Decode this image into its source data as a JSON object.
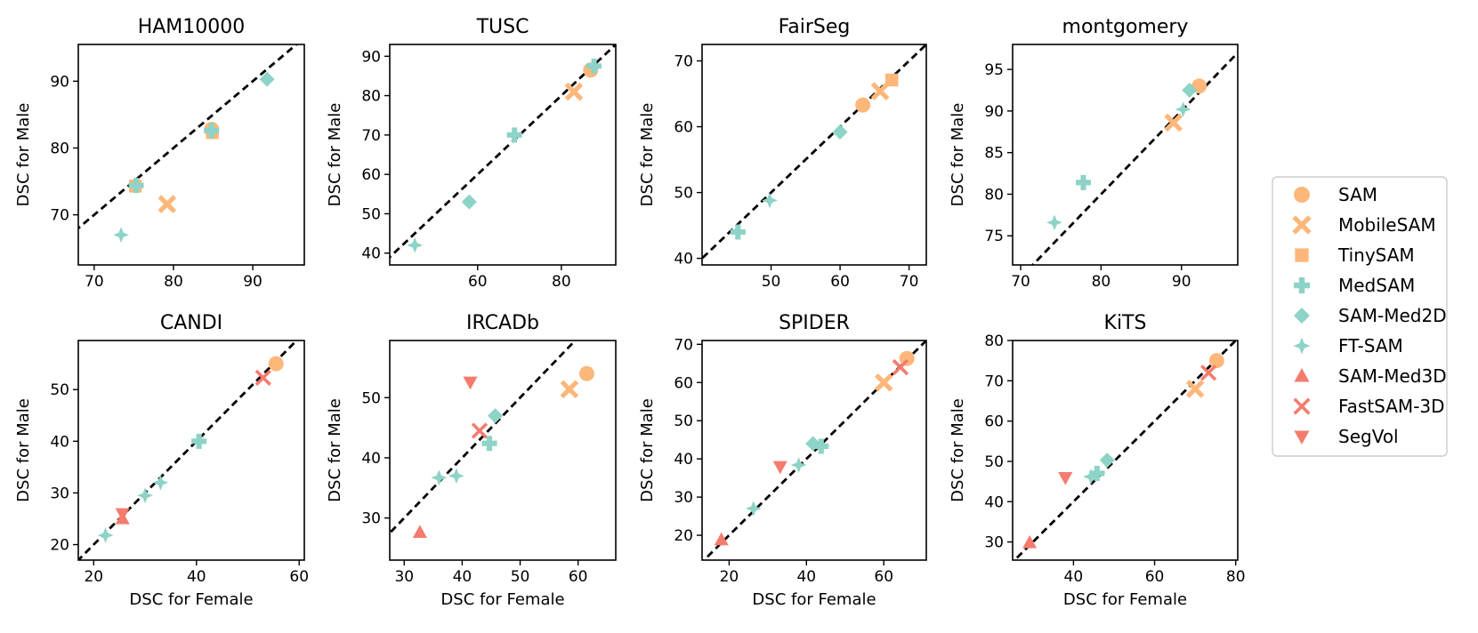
{
  "colors": {
    "orange": "#fdb77a",
    "teal": "#8dd3c7",
    "red": "#f47c6e",
    "frame": "#000000",
    "diagonal": "#000000"
  },
  "legend": {
    "placement": "right",
    "entries": [
      {
        "name": "SAM",
        "marker": "circle",
        "color": "#fdb77a"
      },
      {
        "name": "MobileSAM",
        "marker": "x-thick",
        "color": "#fdb77a"
      },
      {
        "name": "TinySAM",
        "marker": "square",
        "color": "#fdb77a"
      },
      {
        "name": "MedSAM",
        "marker": "plus-thick",
        "color": "#8dd3c7"
      },
      {
        "name": "SAM-Med2D",
        "marker": "diamond",
        "color": "#8dd3c7"
      },
      {
        "name": "FT-SAM",
        "marker": "star4",
        "color": "#8dd3c7"
      },
      {
        "name": "SAM-Med3D",
        "marker": "triangle-up",
        "color": "#f47c6e"
      },
      {
        "name": "FastSAM-3D",
        "marker": "x-thin",
        "color": "#f47c6e"
      },
      {
        "name": "SegVol",
        "marker": "triangle-down",
        "color": "#f47c6e"
      }
    ]
  },
  "chart_data": [
    {
      "type": "scatter",
      "title": "HAM10000",
      "xlabel": "",
      "ylabel": "DSC for Male",
      "xlim": [
        68,
        96.5
      ],
      "ylim": [
        62.5,
        95.5
      ],
      "xticks": [
        70,
        80,
        90
      ],
      "yticks": [
        70,
        80,
        90
      ],
      "diagonal": true,
      "points": [
        {
          "model": "SAM",
          "x": 84.8,
          "y": 82.8
        },
        {
          "model": "MobileSAM",
          "x": 79.2,
          "y": 71.6
        },
        {
          "model": "TinySAM",
          "x": 84.9,
          "y": 82.3
        },
        {
          "model": "MedSAM",
          "x": 84.8,
          "y": 82.6
        },
        {
          "model": "SAM-Med2D",
          "x": 91.8,
          "y": 90.3
        },
        {
          "model": "FT-SAM",
          "x": 73.4,
          "y": 67.0
        },
        {
          "model": "TinySAM",
          "x": 75.2,
          "y": 74.3
        },
        {
          "model": "MedSAM",
          "x": 75.3,
          "y": 74.4
        }
      ]
    },
    {
      "type": "scatter",
      "title": "TUSC",
      "xlabel": "",
      "ylabel": "DSC for Male",
      "xlim": [
        39,
        93
      ],
      "ylim": [
        37,
        93
      ],
      "xticks": [
        60,
        80
      ],
      "yticks": [
        40,
        50,
        60,
        70,
        80,
        90
      ],
      "diagonal": true,
      "points": [
        {
          "model": "SAM",
          "x": 87.0,
          "y": 86.5
        },
        {
          "model": "MobileSAM",
          "x": 83.0,
          "y": 81.0
        },
        {
          "model": "MedSAM",
          "x": 87.8,
          "y": 87.5
        },
        {
          "model": "FT-SAM",
          "x": 45.0,
          "y": 42.0
        },
        {
          "model": "SAM-Med2D",
          "x": 58.0,
          "y": 53.0
        },
        {
          "model": "MedSAM",
          "x": 68.8,
          "y": 70.0
        }
      ]
    },
    {
      "type": "scatter",
      "title": "FairSeg",
      "xlabel": "",
      "ylabel": "DSC for Male",
      "xlim": [
        40,
        72.5
      ],
      "ylim": [
        39,
        72.5
      ],
      "xticks": [
        50,
        60,
        70
      ],
      "yticks": [
        40,
        50,
        60,
        70
      ],
      "diagonal": true,
      "points": [
        {
          "model": "SAM",
          "x": 63.3,
          "y": 63.3
        },
        {
          "model": "MobileSAM",
          "x": 65.8,
          "y": 65.4
        },
        {
          "model": "TinySAM",
          "x": 67.5,
          "y": 67.1
        },
        {
          "model": "SAM-Med2D",
          "x": 60.0,
          "y": 59.2
        },
        {
          "model": "FT-SAM",
          "x": 49.8,
          "y": 48.8
        },
        {
          "model": "MedSAM",
          "x": 45.2,
          "y": 44.0
        }
      ]
    },
    {
      "type": "scatter",
      "title": "montgomery",
      "xlabel": "",
      "ylabel": "DSC for Male",
      "xlim": [
        69,
        97
      ],
      "ylim": [
        71.5,
        98
      ],
      "xticks": [
        70,
        80,
        90
      ],
      "yticks": [
        75,
        80,
        85,
        90,
        95
      ],
      "diagonal": true,
      "points": [
        {
          "model": "SAM",
          "x": 92.2,
          "y": 93.0
        },
        {
          "model": "SAM-Med2D",
          "x": 91.0,
          "y": 92.5
        },
        {
          "model": "FT-SAM",
          "x": 90.2,
          "y": 90.2
        },
        {
          "model": "MobileSAM",
          "x": 89.0,
          "y": 88.6
        },
        {
          "model": "MedSAM",
          "x": 77.8,
          "y": 81.4
        },
        {
          "model": "FT-SAM",
          "x": 74.2,
          "y": 76.6
        }
      ]
    },
    {
      "type": "scatter",
      "title": "CANDI",
      "xlabel": "DSC for Female",
      "ylabel": "DSC for Male",
      "xlim": [
        17,
        61
      ],
      "ylim": [
        17,
        59.5
      ],
      "xticks": [
        20,
        40,
        60
      ],
      "yticks": [
        20,
        30,
        40,
        50
      ],
      "diagonal": true,
      "points": [
        {
          "model": "SAM",
          "x": 55.5,
          "y": 55.0
        },
        {
          "model": "FastSAM-3D",
          "x": 53.0,
          "y": 52.3
        },
        {
          "model": "MedSAM",
          "x": 40.5,
          "y": 40.0
        },
        {
          "model": "FT-SAM",
          "x": 33.0,
          "y": 32.0
        },
        {
          "model": "FT-SAM",
          "x": 30.0,
          "y": 29.5
        },
        {
          "model": "SegVol",
          "x": 25.6,
          "y": 26.0
        },
        {
          "model": "SAM-Med3D",
          "x": 25.6,
          "y": 25.0
        },
        {
          "model": "FT-SAM",
          "x": 22.3,
          "y": 21.8
        }
      ]
    },
    {
      "type": "scatter",
      "title": "IRCADb",
      "xlabel": "DSC for Female",
      "ylabel": "DSC for Male",
      "xlim": [
        27.5,
        66.5
      ],
      "ylim": [
        23,
        59.5
      ],
      "xticks": [
        30,
        40,
        50,
        60
      ],
      "yticks": [
        30,
        40,
        50
      ],
      "diagonal": true,
      "points": [
        {
          "model": "SAM",
          "x": 61.5,
          "y": 54.0
        },
        {
          "model": "MobileSAM",
          "x": 58.5,
          "y": 51.4
        },
        {
          "model": "SegVol",
          "x": 41.4,
          "y": 52.6
        },
        {
          "model": "SAM-Med2D",
          "x": 45.7,
          "y": 47.0
        },
        {
          "model": "FastSAM-3D",
          "x": 43.0,
          "y": 44.5
        },
        {
          "model": "MedSAM",
          "x": 44.7,
          "y": 42.4
        },
        {
          "model": "FT-SAM",
          "x": 36.0,
          "y": 36.7
        },
        {
          "model": "FT-SAM",
          "x": 39.0,
          "y": 37.0
        },
        {
          "model": "SAM-Med3D",
          "x": 32.7,
          "y": 27.6
        }
      ]
    },
    {
      "type": "scatter",
      "title": "SPIDER",
      "xlabel": "DSC for Female",
      "ylabel": "DSC for Male",
      "xlim": [
        13,
        71
      ],
      "ylim": [
        13.5,
        71
      ],
      "xticks": [
        20,
        40,
        60
      ],
      "yticks": [
        20,
        30,
        40,
        50,
        60,
        70
      ],
      "diagonal": true,
      "points": [
        {
          "model": "SAM",
          "x": 66.0,
          "y": 66.3
        },
        {
          "model": "FastSAM-3D",
          "x": 64.3,
          "y": 64.0
        },
        {
          "model": "MobileSAM",
          "x": 60.0,
          "y": 60.0
        },
        {
          "model": "SAM-Med2D",
          "x": 41.7,
          "y": 44.0
        },
        {
          "model": "MedSAM",
          "x": 43.8,
          "y": 43.3
        },
        {
          "model": "FT-SAM",
          "x": 38.0,
          "y": 38.4
        },
        {
          "model": "SegVol",
          "x": 33.2,
          "y": 38.0
        },
        {
          "model": "FT-SAM",
          "x": 26.3,
          "y": 27.0
        },
        {
          "model": "SAM-Med3D",
          "x": 18.0,
          "y": 18.8
        }
      ]
    },
    {
      "type": "scatter",
      "title": "KiTS",
      "xlabel": "DSC for Female",
      "ylabel": "DSC for Male",
      "xlim": [
        25,
        80.5
      ],
      "ylim": [
        25.5,
        80
      ],
      "xticks": [
        40,
        60,
        80
      ],
      "yticks": [
        30,
        40,
        50,
        60,
        70,
        80
      ],
      "diagonal": true,
      "points": [
        {
          "model": "SAM",
          "x": 75.3,
          "y": 75.0
        },
        {
          "model": "FastSAM-3D",
          "x": 73.3,
          "y": 72.0
        },
        {
          "model": "MobileSAM",
          "x": 70.0,
          "y": 68.0
        },
        {
          "model": "SAM-Med2D",
          "x": 48.3,
          "y": 50.3
        },
        {
          "model": "MedSAM",
          "x": 45.8,
          "y": 47.0
        },
        {
          "model": "FT-SAM",
          "x": 44.3,
          "y": 46.2
        },
        {
          "model": "SegVol",
          "x": 38.0,
          "y": 46.0
        },
        {
          "model": "SAM-Med3D",
          "x": 29.2,
          "y": 29.8
        }
      ]
    }
  ]
}
